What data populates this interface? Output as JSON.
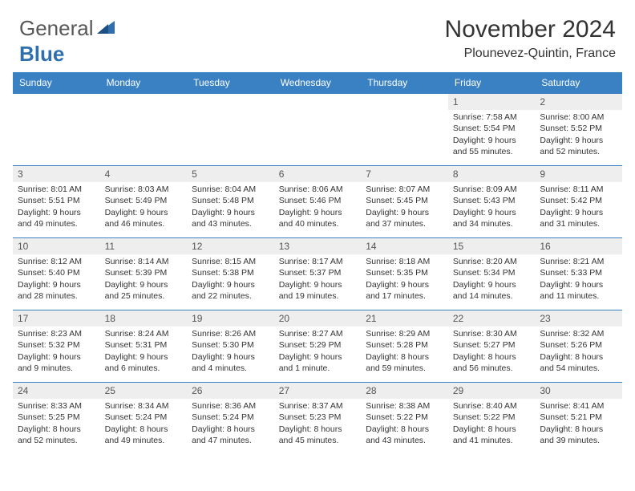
{
  "brand": {
    "text1": "General",
    "text2": "Blue",
    "text_color": "#585858",
    "accent_color": "#2f6fb0"
  },
  "title": "November 2024",
  "location": "Plounevez-Quintin, France",
  "header_bg": "#3a81c3",
  "header_text_color": "#ffffff",
  "daynum_bg": "#eeeeee",
  "border_color": "#3a81c3",
  "weekdays": [
    "Sunday",
    "Monday",
    "Tuesday",
    "Wednesday",
    "Thursday",
    "Friday",
    "Saturday"
  ],
  "weeks": [
    [
      {
        "day": "",
        "sunrise": "",
        "sunset": "",
        "daylight": ""
      },
      {
        "day": "",
        "sunrise": "",
        "sunset": "",
        "daylight": ""
      },
      {
        "day": "",
        "sunrise": "",
        "sunset": "",
        "daylight": ""
      },
      {
        "day": "",
        "sunrise": "",
        "sunset": "",
        "daylight": ""
      },
      {
        "day": "",
        "sunrise": "",
        "sunset": "",
        "daylight": ""
      },
      {
        "day": "1",
        "sunrise": "Sunrise: 7:58 AM",
        "sunset": "Sunset: 5:54 PM",
        "daylight": "Daylight: 9 hours and 55 minutes."
      },
      {
        "day": "2",
        "sunrise": "Sunrise: 8:00 AM",
        "sunset": "Sunset: 5:52 PM",
        "daylight": "Daylight: 9 hours and 52 minutes."
      }
    ],
    [
      {
        "day": "3",
        "sunrise": "Sunrise: 8:01 AM",
        "sunset": "Sunset: 5:51 PM",
        "daylight": "Daylight: 9 hours and 49 minutes."
      },
      {
        "day": "4",
        "sunrise": "Sunrise: 8:03 AM",
        "sunset": "Sunset: 5:49 PM",
        "daylight": "Daylight: 9 hours and 46 minutes."
      },
      {
        "day": "5",
        "sunrise": "Sunrise: 8:04 AM",
        "sunset": "Sunset: 5:48 PM",
        "daylight": "Daylight: 9 hours and 43 minutes."
      },
      {
        "day": "6",
        "sunrise": "Sunrise: 8:06 AM",
        "sunset": "Sunset: 5:46 PM",
        "daylight": "Daylight: 9 hours and 40 minutes."
      },
      {
        "day": "7",
        "sunrise": "Sunrise: 8:07 AM",
        "sunset": "Sunset: 5:45 PM",
        "daylight": "Daylight: 9 hours and 37 minutes."
      },
      {
        "day": "8",
        "sunrise": "Sunrise: 8:09 AM",
        "sunset": "Sunset: 5:43 PM",
        "daylight": "Daylight: 9 hours and 34 minutes."
      },
      {
        "day": "9",
        "sunrise": "Sunrise: 8:11 AM",
        "sunset": "Sunset: 5:42 PM",
        "daylight": "Daylight: 9 hours and 31 minutes."
      }
    ],
    [
      {
        "day": "10",
        "sunrise": "Sunrise: 8:12 AM",
        "sunset": "Sunset: 5:40 PM",
        "daylight": "Daylight: 9 hours and 28 minutes."
      },
      {
        "day": "11",
        "sunrise": "Sunrise: 8:14 AM",
        "sunset": "Sunset: 5:39 PM",
        "daylight": "Daylight: 9 hours and 25 minutes."
      },
      {
        "day": "12",
        "sunrise": "Sunrise: 8:15 AM",
        "sunset": "Sunset: 5:38 PM",
        "daylight": "Daylight: 9 hours and 22 minutes."
      },
      {
        "day": "13",
        "sunrise": "Sunrise: 8:17 AM",
        "sunset": "Sunset: 5:37 PM",
        "daylight": "Daylight: 9 hours and 19 minutes."
      },
      {
        "day": "14",
        "sunrise": "Sunrise: 8:18 AM",
        "sunset": "Sunset: 5:35 PM",
        "daylight": "Daylight: 9 hours and 17 minutes."
      },
      {
        "day": "15",
        "sunrise": "Sunrise: 8:20 AM",
        "sunset": "Sunset: 5:34 PM",
        "daylight": "Daylight: 9 hours and 14 minutes."
      },
      {
        "day": "16",
        "sunrise": "Sunrise: 8:21 AM",
        "sunset": "Sunset: 5:33 PM",
        "daylight": "Daylight: 9 hours and 11 minutes."
      }
    ],
    [
      {
        "day": "17",
        "sunrise": "Sunrise: 8:23 AM",
        "sunset": "Sunset: 5:32 PM",
        "daylight": "Daylight: 9 hours and 9 minutes."
      },
      {
        "day": "18",
        "sunrise": "Sunrise: 8:24 AM",
        "sunset": "Sunset: 5:31 PM",
        "daylight": "Daylight: 9 hours and 6 minutes."
      },
      {
        "day": "19",
        "sunrise": "Sunrise: 8:26 AM",
        "sunset": "Sunset: 5:30 PM",
        "daylight": "Daylight: 9 hours and 4 minutes."
      },
      {
        "day": "20",
        "sunrise": "Sunrise: 8:27 AM",
        "sunset": "Sunset: 5:29 PM",
        "daylight": "Daylight: 9 hours and 1 minute."
      },
      {
        "day": "21",
        "sunrise": "Sunrise: 8:29 AM",
        "sunset": "Sunset: 5:28 PM",
        "daylight": "Daylight: 8 hours and 59 minutes."
      },
      {
        "day": "22",
        "sunrise": "Sunrise: 8:30 AM",
        "sunset": "Sunset: 5:27 PM",
        "daylight": "Daylight: 8 hours and 56 minutes."
      },
      {
        "day": "23",
        "sunrise": "Sunrise: 8:32 AM",
        "sunset": "Sunset: 5:26 PM",
        "daylight": "Daylight: 8 hours and 54 minutes."
      }
    ],
    [
      {
        "day": "24",
        "sunrise": "Sunrise: 8:33 AM",
        "sunset": "Sunset: 5:25 PM",
        "daylight": "Daylight: 8 hours and 52 minutes."
      },
      {
        "day": "25",
        "sunrise": "Sunrise: 8:34 AM",
        "sunset": "Sunset: 5:24 PM",
        "daylight": "Daylight: 8 hours and 49 minutes."
      },
      {
        "day": "26",
        "sunrise": "Sunrise: 8:36 AM",
        "sunset": "Sunset: 5:24 PM",
        "daylight": "Daylight: 8 hours and 47 minutes."
      },
      {
        "day": "27",
        "sunrise": "Sunrise: 8:37 AM",
        "sunset": "Sunset: 5:23 PM",
        "daylight": "Daylight: 8 hours and 45 minutes."
      },
      {
        "day": "28",
        "sunrise": "Sunrise: 8:38 AM",
        "sunset": "Sunset: 5:22 PM",
        "daylight": "Daylight: 8 hours and 43 minutes."
      },
      {
        "day": "29",
        "sunrise": "Sunrise: 8:40 AM",
        "sunset": "Sunset: 5:22 PM",
        "daylight": "Daylight: 8 hours and 41 minutes."
      },
      {
        "day": "30",
        "sunrise": "Sunrise: 8:41 AM",
        "sunset": "Sunset: 5:21 PM",
        "daylight": "Daylight: 8 hours and 39 minutes."
      }
    ]
  ]
}
